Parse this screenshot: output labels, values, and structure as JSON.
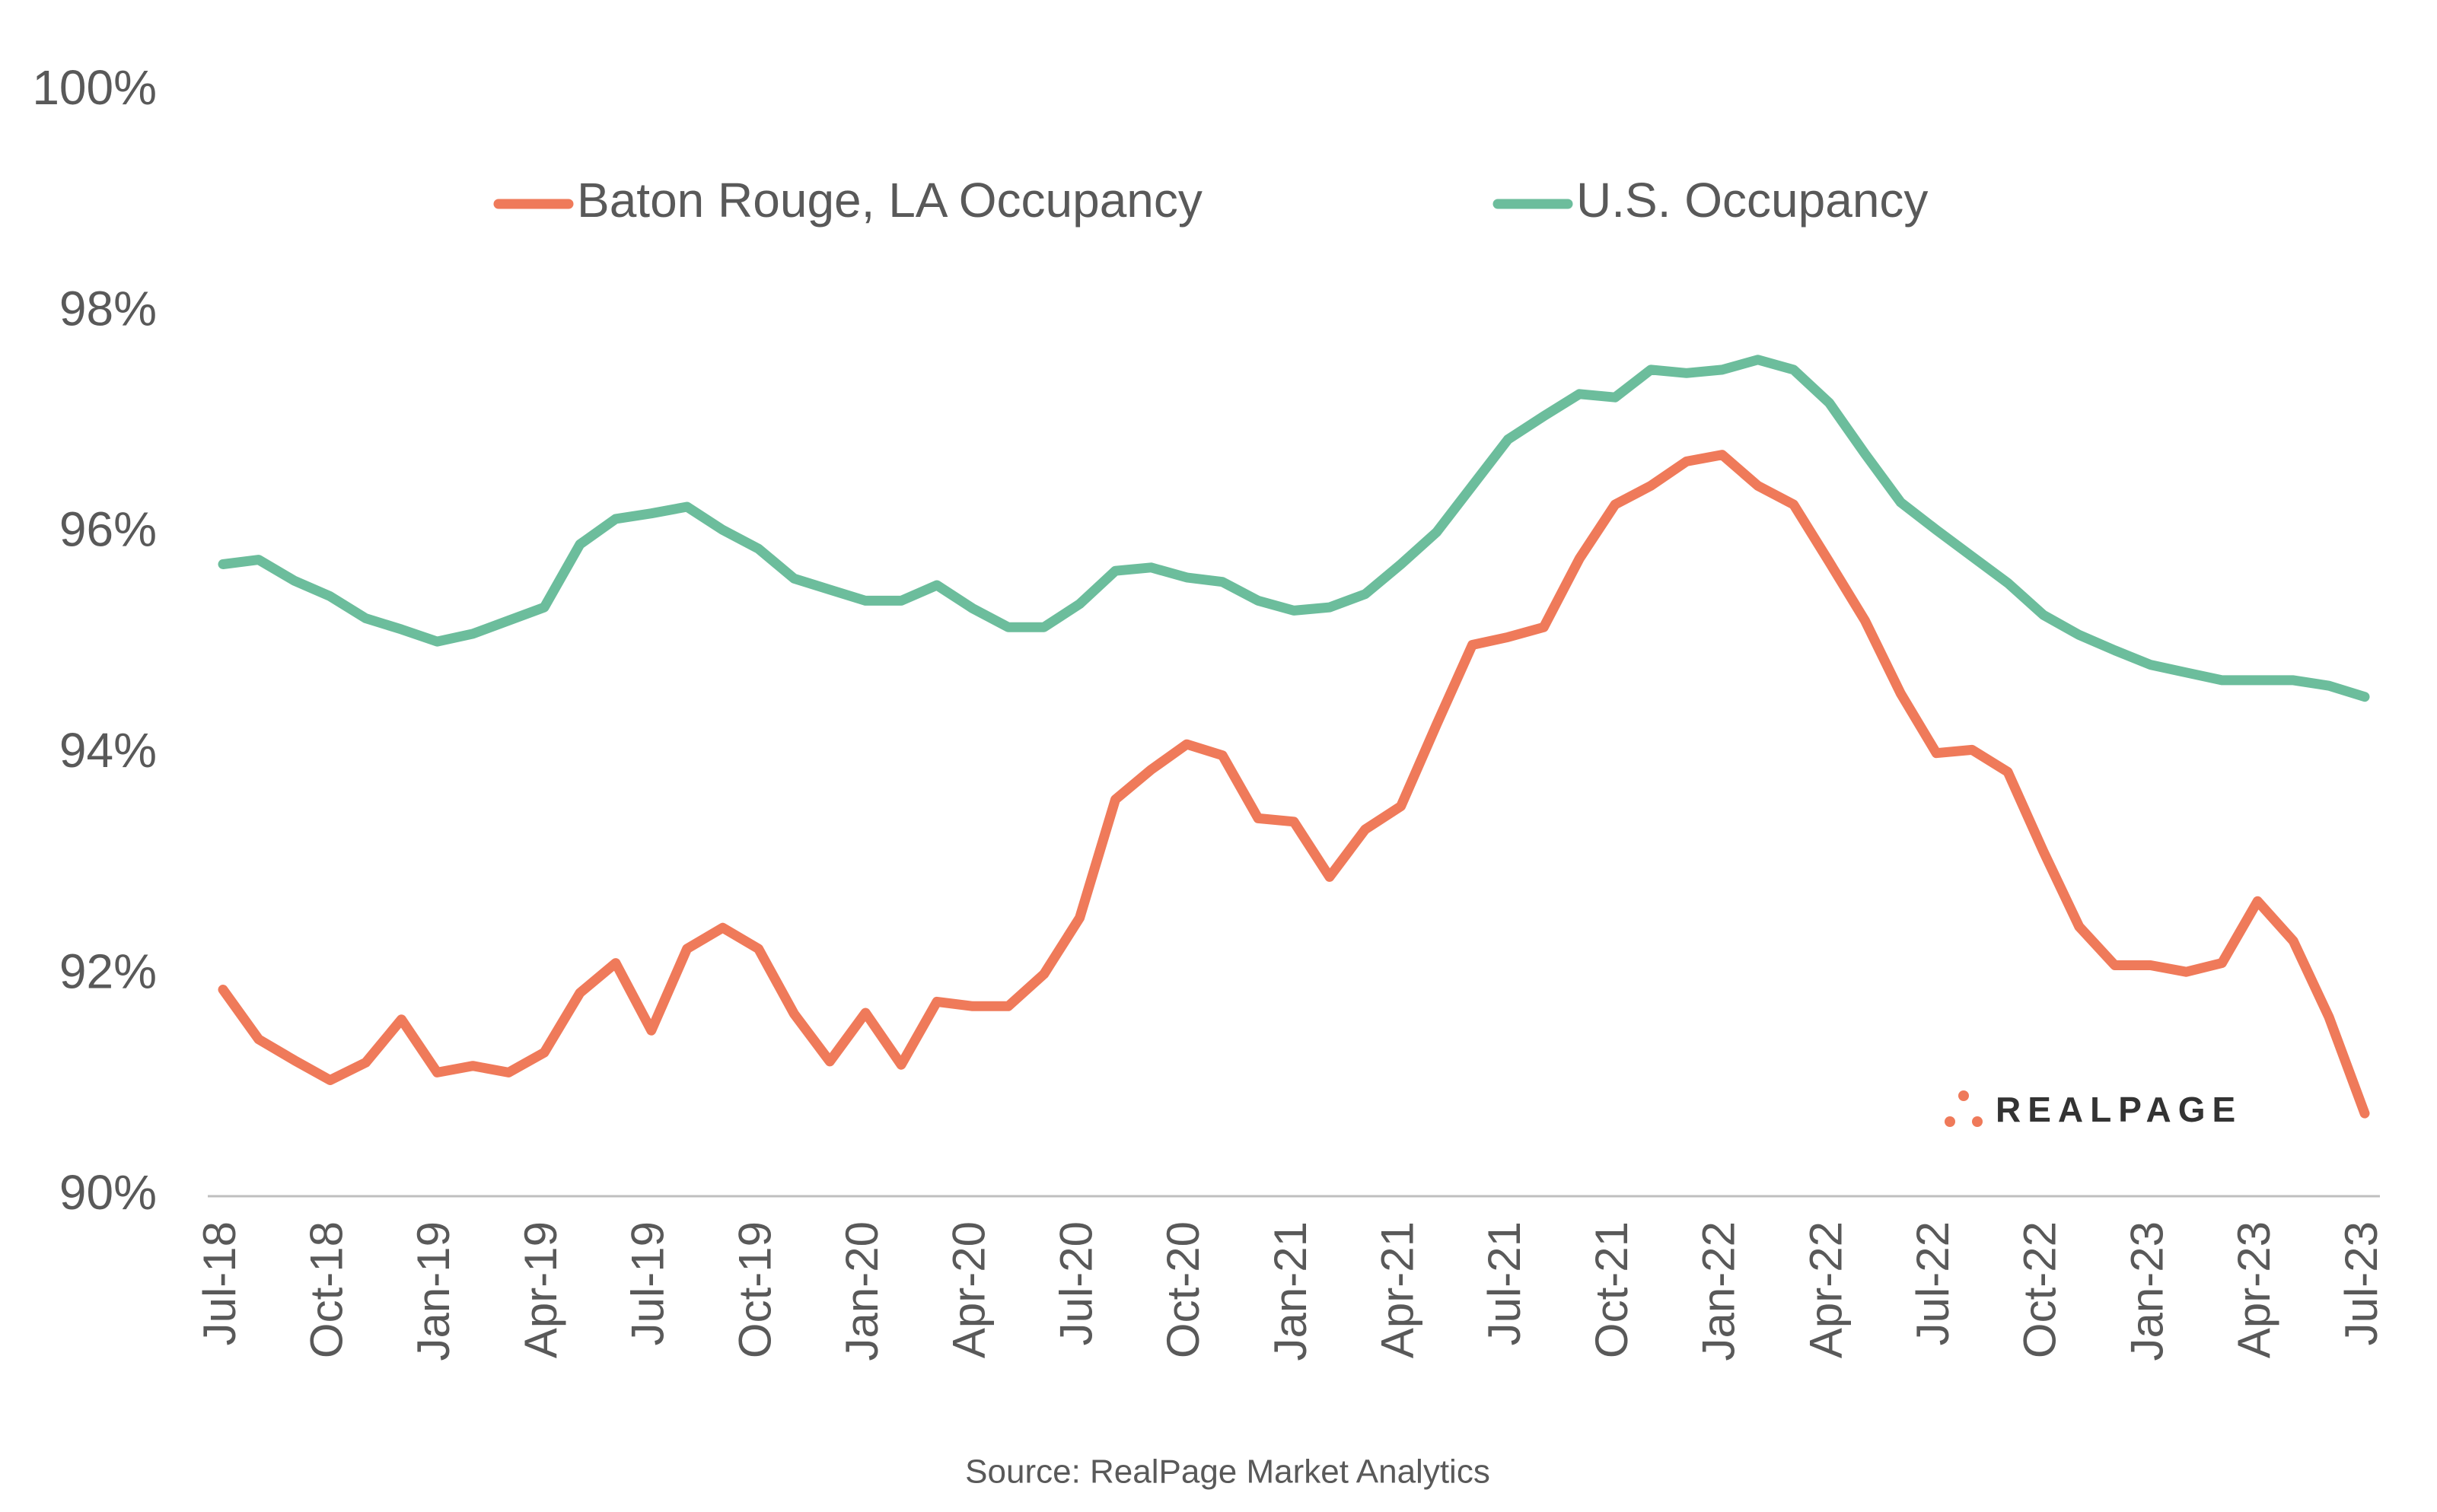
{
  "chart_data": {
    "type": "line",
    "categories": [
      "Jul-18",
      null,
      null,
      "Oct-18",
      null,
      null,
      "Jan-19",
      null,
      null,
      "Apr-19",
      null,
      null,
      "Jul-19",
      null,
      null,
      "Oct-19",
      null,
      null,
      "Jan-20",
      null,
      null,
      "Apr-20",
      null,
      null,
      "Jul-20",
      null,
      null,
      "Oct-20",
      null,
      null,
      "Jan-21",
      null,
      null,
      "Apr-21",
      null,
      null,
      "Jul-21",
      null,
      null,
      "Oct-21",
      null,
      null,
      "Jan-22",
      null,
      null,
      "Apr-22",
      null,
      null,
      "Jul-22",
      null,
      null,
      "Oct-22",
      null,
      null,
      "Jan-23",
      null,
      null,
      "Apr-23",
      null,
      null,
      "Jul-23"
    ],
    "series": [
      {
        "name": "Baton Rouge, LA Occupancy",
        "color": "#ef7a5a",
        "values": [
          91.87,
          91.42,
          91.23,
          91.05,
          91.21,
          91.6,
          91.12,
          91.18,
          91.12,
          91.3,
          91.84,
          92.11,
          91.5,
          92.24,
          92.43,
          92.24,
          91.65,
          91.22,
          91.66,
          91.19,
          91.76,
          91.72,
          91.72,
          92.01,
          92.52,
          93.59,
          93.86,
          94.09,
          93.99,
          93.42,
          93.39,
          92.89,
          93.32,
          93.53,
          94.27,
          94.99,
          95.06,
          95.15,
          95.77,
          96.26,
          96.43,
          96.65,
          96.71,
          96.43,
          96.26,
          95.74,
          95.21,
          94.55,
          94.01,
          94.04,
          93.84,
          93.12,
          92.44,
          92.09,
          92.09,
          92.03,
          92.11,
          92.67,
          92.31,
          91.62,
          90.75
        ]
      },
      {
        "name": "U.S. Occupancy",
        "color": "#6cbd9c",
        "values": [
          95.72,
          95.76,
          95.57,
          95.43,
          95.23,
          95.13,
          95.02,
          95.09,
          95.21,
          95.33,
          95.9,
          96.13,
          96.18,
          96.24,
          96.03,
          95.86,
          95.59,
          95.49,
          95.39,
          95.39,
          95.53,
          95.32,
          95.15,
          95.15,
          95.36,
          95.66,
          95.69,
          95.6,
          95.56,
          95.39,
          95.3,
          95.33,
          95.45,
          95.72,
          96.01,
          96.43,
          96.85,
          97.06,
          97.26,
          97.23,
          97.48,
          97.45,
          97.48,
          97.57,
          97.48,
          97.18,
          96.72,
          96.28,
          96.03,
          95.79,
          95.55,
          95.26,
          95.08,
          94.94,
          94.81,
          94.74,
          94.67,
          94.67,
          94.67,
          94.62,
          94.52
        ]
      }
    ],
    "ylim": [
      90,
      100
    ],
    "yticks": [
      {
        "value": 90,
        "label": "90%"
      },
      {
        "value": 92,
        "label": "92%"
      },
      {
        "value": 94,
        "label": "94%"
      },
      {
        "value": 96,
        "label": "96%"
      },
      {
        "value": 98,
        "label": "98%"
      },
      {
        "value": 100,
        "label": "100%"
      }
    ],
    "grid": false,
    "legend": "top",
    "source": "Source: RealPage Market Analytics",
    "logo": "REALPAGE"
  }
}
